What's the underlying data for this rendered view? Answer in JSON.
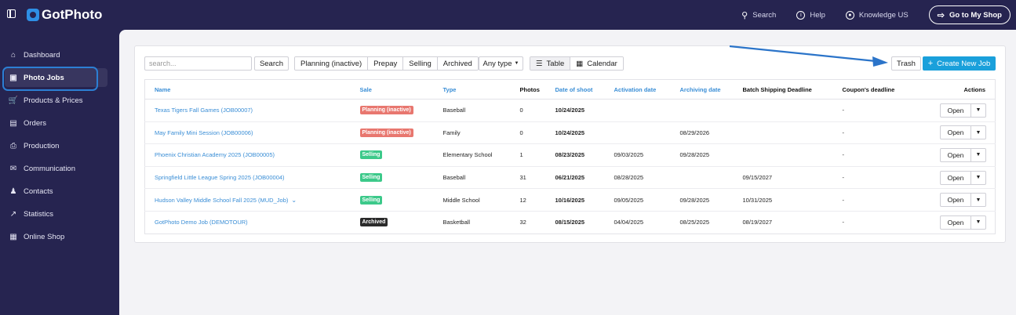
{
  "app": {
    "name": "GotPhoto"
  },
  "topbar": {
    "search": "Search",
    "help": "Help",
    "knowledge": "Knowledge US",
    "shop": "Go to My Shop"
  },
  "sidebar": {
    "items": [
      {
        "label": "Dashboard",
        "icon": "home-icon"
      },
      {
        "label": "Photo Jobs",
        "icon": "image-icon",
        "active": true
      },
      {
        "label": "Products & Prices",
        "icon": "cart-icon"
      },
      {
        "label": "Orders",
        "icon": "tray-icon"
      },
      {
        "label": "Production",
        "icon": "printer-icon"
      },
      {
        "label": "Communication",
        "icon": "message-icon"
      },
      {
        "label": "Contacts",
        "icon": "user-icon"
      },
      {
        "label": "Statistics",
        "icon": "chart-icon"
      },
      {
        "label": "Online Shop",
        "icon": "store-icon"
      }
    ]
  },
  "toolbar": {
    "search_placeholder": "search...",
    "search_button": "Search",
    "filters": [
      "Planning (inactive)",
      "Prepay",
      "Selling",
      "Archived"
    ],
    "type_filter": "Any type",
    "view_table": "Table",
    "view_calendar": "Calendar",
    "trash": "Trash",
    "create": "Create New Job"
  },
  "table": {
    "headers": [
      "Name",
      "Sale",
      "Type",
      "Photos",
      "Date of shoot",
      "Activation date",
      "Archiving date",
      "Batch Shipping Deadline",
      "Coupon's deadline",
      "Actions"
    ],
    "open_label": "Open",
    "rows": [
      {
        "name": "Texas Tigers Fall Games (JOB00007)",
        "sale": "Planning (inactive)",
        "type": "Baseball",
        "photos": "0",
        "shoot": "10/24/2025",
        "activation": "",
        "archiving": "",
        "shipping": "",
        "coupon": "-"
      },
      {
        "name": "May Family Mini Session (JOB00006)",
        "sale": "Planning (inactive)",
        "type": "Family",
        "photos": "0",
        "shoot": "10/24/2025",
        "activation": "",
        "archiving": "08/29/2026",
        "shipping": "",
        "coupon": "-"
      },
      {
        "name": "Phoenix Christian Academy 2025 (JOB00005)",
        "sale": "Selling",
        "type": "Elementary School",
        "photos": "1",
        "shoot": "08/23/2025",
        "activation": "09/03/2025",
        "archiving": "09/28/2025",
        "shipping": "",
        "coupon": "-"
      },
      {
        "name": "Springfield Little League Spring 2025 (JOB00004)",
        "sale": "Selling",
        "type": "Baseball",
        "photos": "31",
        "shoot": "06/21/2025",
        "activation": "08/28/2025",
        "archiving": "",
        "shipping": "09/15/2027",
        "coupon": "-"
      },
      {
        "name": "Hudson Valley Middle School Fall 2025 (MUD_Job)",
        "sale": "Selling",
        "type": "Middle School",
        "photos": "12",
        "shoot": "10/16/2025",
        "activation": "09/05/2025",
        "archiving": "09/28/2025",
        "shipping": "10/31/2025",
        "coupon": "-"
      },
      {
        "name": "GotPhoto Demo Job (DEMOTOUR)",
        "sale": "Archived",
        "type": "Basketball",
        "photos": "32",
        "shoot": "08/15/2025",
        "activation": "04/04/2025",
        "archiving": "08/25/2025",
        "shipping": "08/19/2027",
        "coupon": "-"
      }
    ]
  },
  "colors": {
    "planning": "#e8776f",
    "selling": "#3cc98a",
    "archived": "#2b2b2b",
    "accent": "#1aa0db",
    "sidebar": "#262450"
  }
}
